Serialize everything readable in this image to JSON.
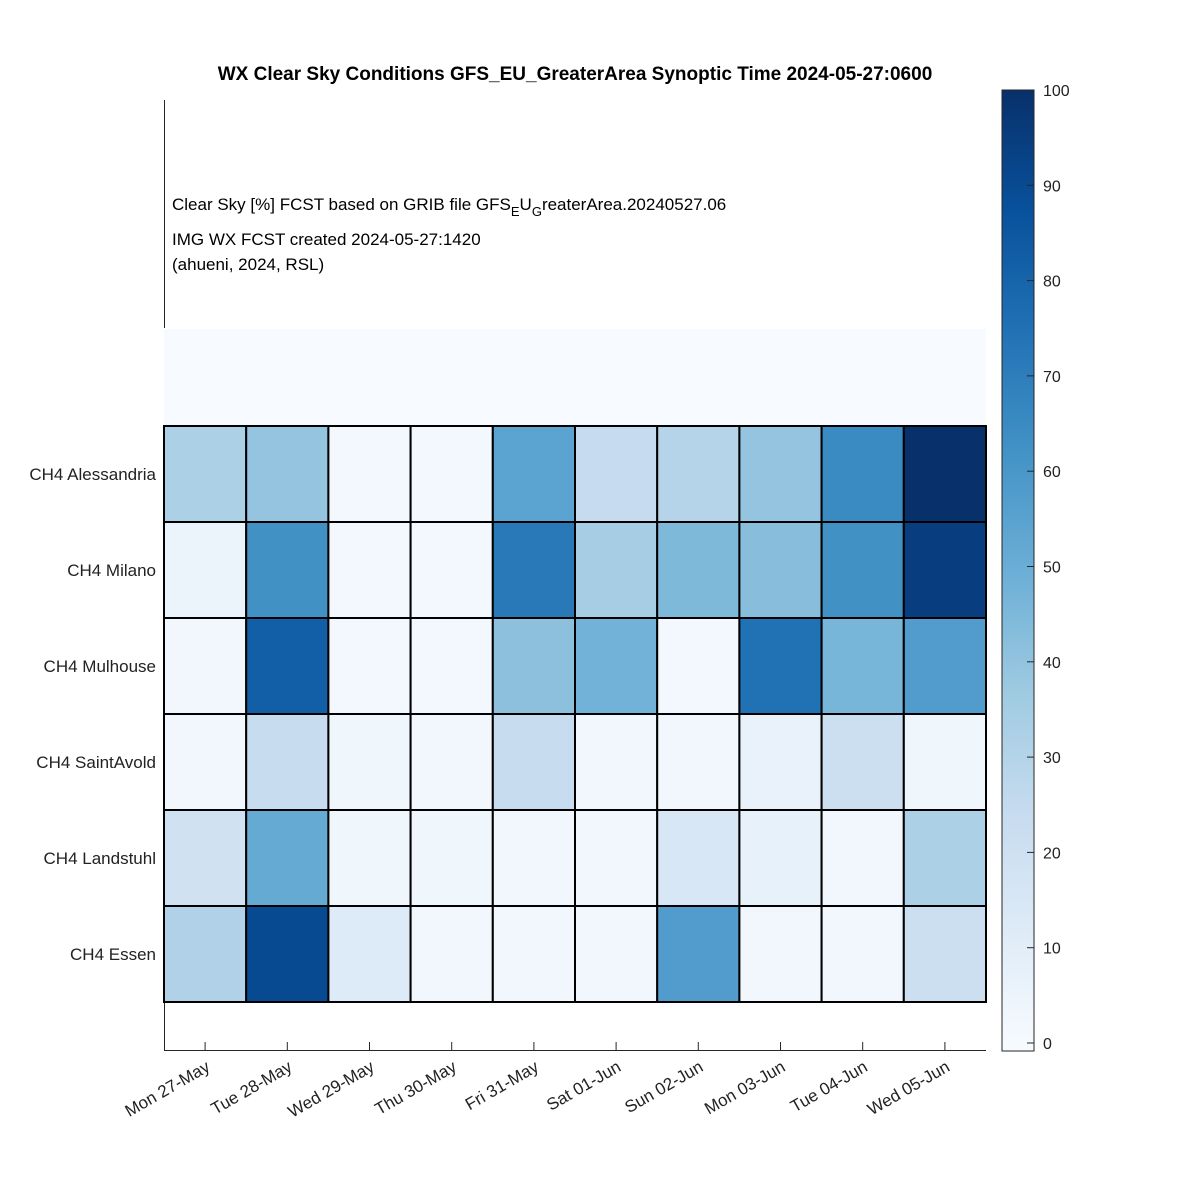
{
  "chart_data": {
    "type": "heatmap",
    "title": "WX Clear Sky Conditions GFS_EU_GreaterArea Synoptic Time 2024-05-27:0600",
    "annotation": {
      "line1_prefix": "Clear Sky [%]  FCST based on GRIB file GFS",
      "line1_sub1": "E",
      "line1_mid": "U",
      "line1_sub2": "G",
      "line1_suffix": "reaterArea.20240527.06",
      "line2": "IMG WX FCST created 2024-05-27:1420",
      "line3": "(ahueni, 2024, RSL)"
    },
    "x_categories": [
      "Mon 27-May",
      "Tue 28-May",
      "Wed 29-May",
      "Thu 30-May",
      "Fri 31-May",
      "Sat 01-Jun",
      "Sun 02-Jun",
      "Mon 03-Jun",
      "Tue 04-Jun",
      "Wed 05-Jun"
    ],
    "y_categories": [
      "CH4 Alessandria",
      "CH4 Milano",
      "CH4 Mulhouse",
      "CH4 SaintAvold",
      "CH4 Landstuhl",
      "CH4 Essen"
    ],
    "values": [
      [
        33,
        40,
        2,
        2,
        55,
        25,
        30,
        40,
        65,
        100
      ],
      [
        6,
        63,
        2,
        2,
        72,
        35,
        45,
        43,
        63,
        95
      ],
      [
        3,
        82,
        2,
        2,
        42,
        48,
        2,
        75,
        47,
        58
      ],
      [
        3,
        24,
        4,
        3,
        24,
        3,
        3,
        7,
        22,
        4
      ],
      [
        20,
        52,
        4,
        4,
        3,
        3,
        16,
        8,
        3,
        33
      ],
      [
        32,
        90,
        13,
        3,
        3,
        3,
        58,
        3,
        3,
        22
      ]
    ],
    "colorbar": {
      "min": 0,
      "max": 100,
      "ticks": [
        0,
        10,
        20,
        30,
        40,
        50,
        60,
        70,
        80,
        90,
        100
      ],
      "colormap": "Blues"
    },
    "xlabel": "",
    "ylabel": ""
  }
}
